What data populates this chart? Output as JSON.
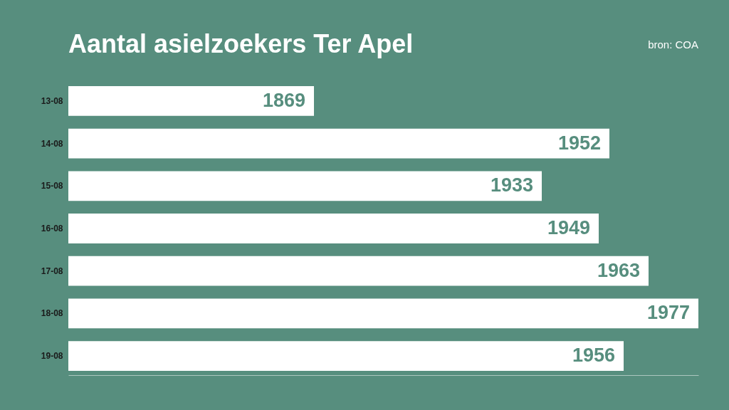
{
  "chart_data": {
    "type": "bar",
    "orientation": "horizontal",
    "title": "Aantal asielzoekers Ter Apel",
    "annotations": [
      "bron: COA"
    ],
    "categories": [
      "13-08",
      "14-08",
      "15-08",
      "16-08",
      "17-08",
      "18-08",
      "19-08"
    ],
    "values": [
      1869,
      1952,
      1933,
      1949,
      1963,
      1977,
      1956
    ],
    "color": "#ffffff",
    "xlim": [
      1800,
      1977
    ],
    "data_labels": true,
    "grid": false,
    "tick_labels": "y"
  }
}
